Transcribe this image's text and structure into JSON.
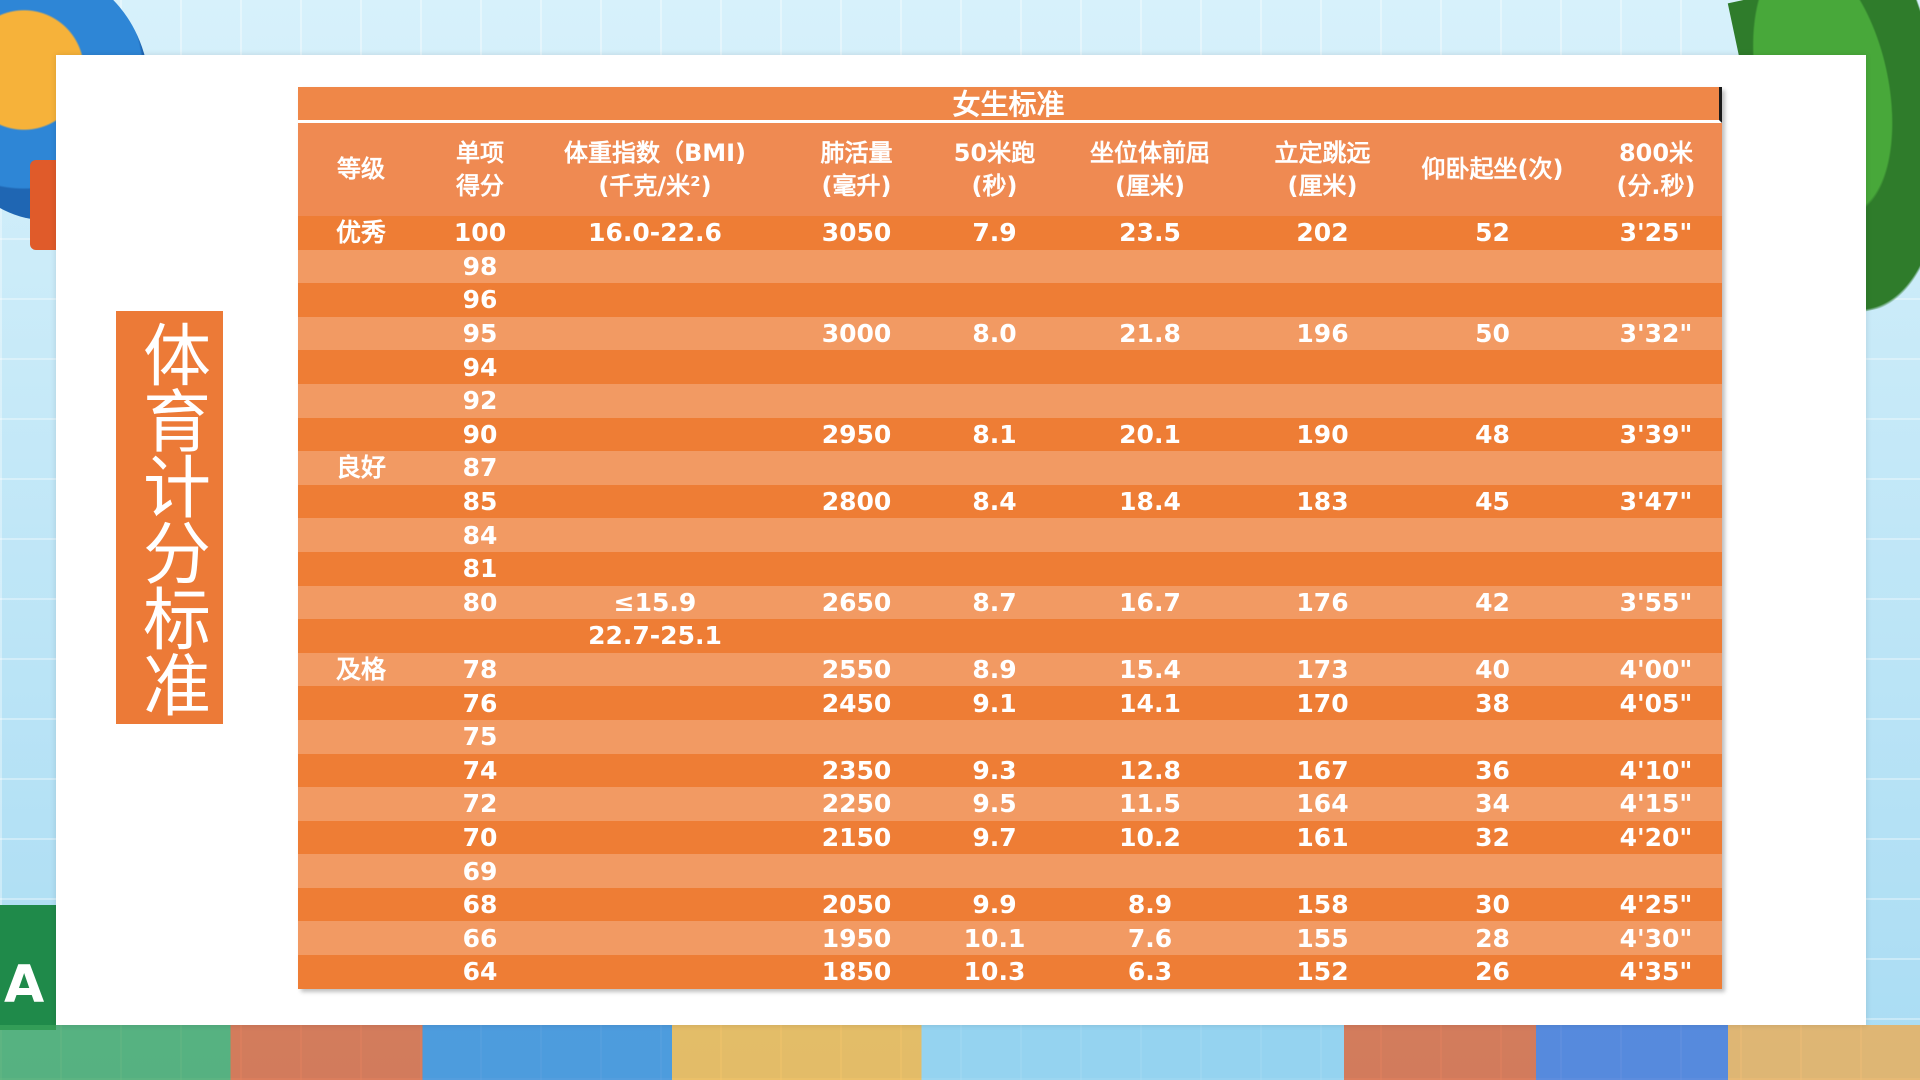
{
  "slide_title": "体育计分标准",
  "table": {
    "title": "女生标准",
    "headers": [
      {
        "line1": "等级",
        "line2": ""
      },
      {
        "line1": "单项",
        "line2": "得分"
      },
      {
        "line1": "体重指数（BMI)",
        "line2": "(千克/米²)"
      },
      {
        "line1": "肺活量",
        "line2": "(毫升)"
      },
      {
        "line1": "50米跑",
        "line2": "(秒)"
      },
      {
        "line1": "坐位体前屈",
        "line2": "(厘米)"
      },
      {
        "line1": "立定跳远",
        "line2": "(厘米)"
      },
      {
        "line1": "仰卧起坐(次)",
        "line2": ""
      },
      {
        "line1": "800米",
        "line2": "(分.秒)"
      }
    ],
    "rows": [
      [
        "优秀",
        "100",
        "16.0-22.6",
        "3050",
        "7.9",
        "23.5",
        "202",
        "52",
        "3'25\""
      ],
      [
        "",
        "98",
        "",
        "",
        "",
        "",
        "",
        "",
        ""
      ],
      [
        "",
        "96",
        "",
        "",
        "",
        "",
        "",
        "",
        ""
      ],
      [
        "",
        "95",
        "",
        "3000",
        "8.0",
        "21.8",
        "196",
        "50",
        "3'32\""
      ],
      [
        "",
        "94",
        "",
        "",
        "",
        "",
        "",
        "",
        ""
      ],
      [
        "",
        "92",
        "",
        "",
        "",
        "",
        "",
        "",
        ""
      ],
      [
        "",
        "90",
        "",
        "2950",
        "8.1",
        "20.1",
        "190",
        "48",
        "3'39\""
      ],
      [
        "良好",
        "87",
        "",
        "",
        "",
        "",
        "",
        "",
        ""
      ],
      [
        "",
        "85",
        "",
        "2800",
        "8.4",
        "18.4",
        "183",
        "45",
        "3'47\""
      ],
      [
        "",
        "84",
        "",
        "",
        "",
        "",
        "",
        "",
        ""
      ],
      [
        "",
        "81",
        "",
        "",
        "",
        "",
        "",
        "",
        ""
      ],
      [
        "",
        "80",
        "≤15.9",
        "2650",
        "8.7",
        "16.7",
        "176",
        "42",
        "3'55\""
      ],
      [
        "",
        "",
        "22.7-25.1",
        "",
        "",
        "",
        "",
        "",
        ""
      ],
      [
        "及格",
        "78",
        "",
        "2550",
        "8.9",
        "15.4",
        "173",
        "40",
        "4'00\""
      ],
      [
        "",
        "76",
        "",
        "2450",
        "9.1",
        "14.1",
        "170",
        "38",
        "4'05\""
      ],
      [
        "",
        "75",
        "",
        "",
        "",
        "",
        "",
        "",
        ""
      ],
      [
        "",
        "74",
        "",
        "2350",
        "9.3",
        "12.8",
        "167",
        "36",
        "4'10\""
      ],
      [
        "",
        "72",
        "",
        "2250",
        "9.5",
        "11.5",
        "164",
        "34",
        "4'15\""
      ],
      [
        "",
        "70",
        "",
        "2150",
        "9.7",
        "10.2",
        "161",
        "32",
        "4'20\""
      ],
      [
        "",
        "69",
        "",
        "",
        "",
        "",
        "",
        "",
        ""
      ],
      [
        "",
        "68",
        "",
        "2050",
        "9.9",
        "8.9",
        "158",
        "30",
        "4'25\""
      ],
      [
        "",
        "66",
        "",
        "1950",
        "10.1",
        "7.6",
        "155",
        "28",
        "4'30\""
      ],
      [
        "",
        "64",
        "",
        "1850",
        "10.3",
        "6.3",
        "152",
        "26",
        "4'35\""
      ]
    ]
  },
  "colors": {
    "accent": "#ec7a37",
    "row_dark": "#ee7d35",
    "row_light": "#f29a63"
  }
}
